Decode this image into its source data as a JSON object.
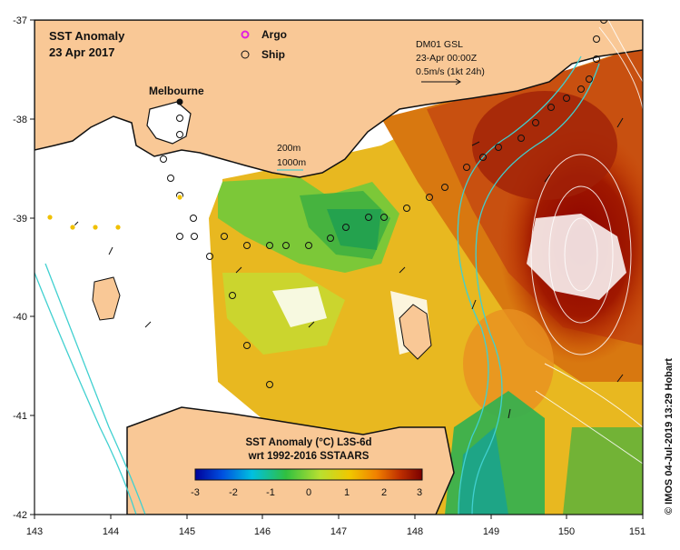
{
  "title": {
    "line1": "SST Anomaly",
    "line2": "23 Apr 2017"
  },
  "legend": {
    "argo": "Argo",
    "ship": "Ship"
  },
  "city": "Melbourne",
  "current_scale": {
    "line1": "DM01 GSL",
    "line2": "23-Apr 00:00Z",
    "line3": "0.5m/s (1kt 24h)"
  },
  "isobaths": {
    "a": "200m",
    "b": "1000m"
  },
  "colorbar": {
    "title1": "SST Anomaly (°C) L3S-6d",
    "title2": "wrt 1992-2016 SSTAARS",
    "ticks": [
      "-3",
      "-2",
      "-1",
      "0",
      "1",
      "2",
      "3"
    ],
    "colors": [
      "#0000a0",
      "#0070e0",
      "#00c8e0",
      "#40c040",
      "#c8e030",
      "#f0c800",
      "#f08000",
      "#c83000",
      "#800000"
    ]
  },
  "credit": "© IMOS 04-Jul-2019 13:29 Hobart",
  "axes": {
    "x_ticks": [
      "143",
      "144",
      "145",
      "146",
      "147",
      "148",
      "149",
      "150",
      "151"
    ],
    "y_ticks": [
      "-37",
      "-38",
      "-39",
      "-40",
      "-41",
      "-42"
    ],
    "lon_range": [
      143,
      151
    ],
    "lat_range": [
      -42,
      -37
    ]
  },
  "colors": {
    "land": "#f9c896",
    "coast": "#111111",
    "isobath": "#40d0d0",
    "argo": "#e020e0"
  }
}
